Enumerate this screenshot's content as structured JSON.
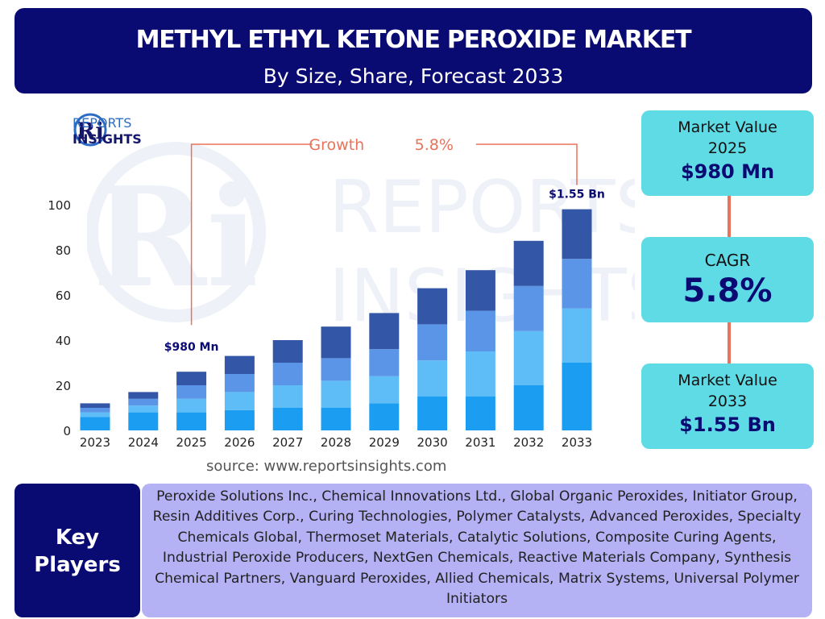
{
  "header": {
    "title": "METHYL ETHYL KETONE PEROXIDE MARKET",
    "subtitle": "By Size, Share, Forecast 2033"
  },
  "logo": {
    "mark": "Ri",
    "line1": "REPORTS",
    "line2": "INSIGHTS",
    "watermark_line1": "REPORTS",
    "watermark_line2": "INSIGHTS"
  },
  "chart_data": {
    "type": "bar",
    "stacked": true,
    "categories": [
      "2023",
      "2024",
      "2025",
      "2026",
      "2027",
      "2028",
      "2029",
      "2030",
      "2031",
      "2032",
      "2033"
    ],
    "series": [
      {
        "values": [
          6,
          8,
          8,
          9,
          10,
          10,
          12,
          15,
          15,
          20,
          30
        ]
      },
      {
        "values": [
          2,
          3,
          6,
          8,
          10,
          12,
          12,
          16,
          20,
          24,
          24
        ]
      },
      {
        "values": [
          2,
          3,
          6,
          8,
          10,
          10,
          12,
          16,
          18,
          20,
          22
        ]
      },
      {
        "values": [
          2,
          3,
          6,
          8,
          10,
          14,
          16,
          16,
          18,
          20,
          22
        ]
      }
    ],
    "colors": [
      "#1b9ef2",
      "#5ebcf6",
      "#5a95e8",
      "#3456a6"
    ],
    "ylim": [
      0,
      100
    ],
    "yticks": [
      0,
      20,
      40,
      60,
      80,
      100
    ],
    "grid": false,
    "annotations": {
      "growth_label": "Growth",
      "growth_value": "5.8%",
      "start_label": "$980 Mn",
      "start_category": "2025",
      "end_label": "$1.55 Bn",
      "end_category": "2033",
      "accent_color": "#e8725a"
    }
  },
  "source": "source: www.reportsinsights.com",
  "cards": {
    "market_value_2025": {
      "label_line1": "Market Value",
      "label_line2": "2025",
      "value": "$980 Mn"
    },
    "cagr": {
      "label": "CAGR",
      "value": "5.8%"
    },
    "market_value_2033": {
      "label_line1": "Market Value",
      "label_line2": "2033",
      "value": "$1.55 Bn"
    }
  },
  "key_players": {
    "label_line1": "Key",
    "label_line2": "Players",
    "text": "Peroxide Solutions Inc., Chemical Innovations Ltd., Global Organic Peroxides, Initiator Group, Resin Additives Corp., Curing Technologies, Polymer Catalysts, Advanced Peroxides, Specialty Chemicals Global, Thermoset Materials, Catalytic Solutions, Composite Curing Agents, Industrial Peroxide Producers, NextGen Chemicals, Reactive Materials Company, Synthesis Chemical Partners, Vanguard Peroxides, Allied Chemicals, Matrix Systems, Universal Polymer Initiators"
  },
  "colors": {
    "navy": "#0a0a73",
    "card": "#5fdbe6",
    "players_box": "#b5b1f5",
    "accent": "#e8725a"
  }
}
